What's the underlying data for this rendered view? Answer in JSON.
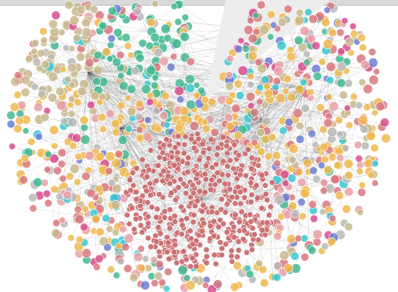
{
  "graph": {
    "type": "network",
    "layout": "radial",
    "edge_color": "#555555",
    "wedge_color": "#ededed",
    "node_colors": {
      "salmon": "#d9787c",
      "teal": "#43b893",
      "tan": "#c8b88d",
      "orange": "#f0b94f",
      "cyan": "#3cc7d4",
      "magenta": "#d84e8f",
      "blue": "#6f7fd6",
      "grey": "#b8b8b8",
      "pink": "#e8a0a6"
    },
    "dense_cluster_color": "#c96d6f"
  }
}
